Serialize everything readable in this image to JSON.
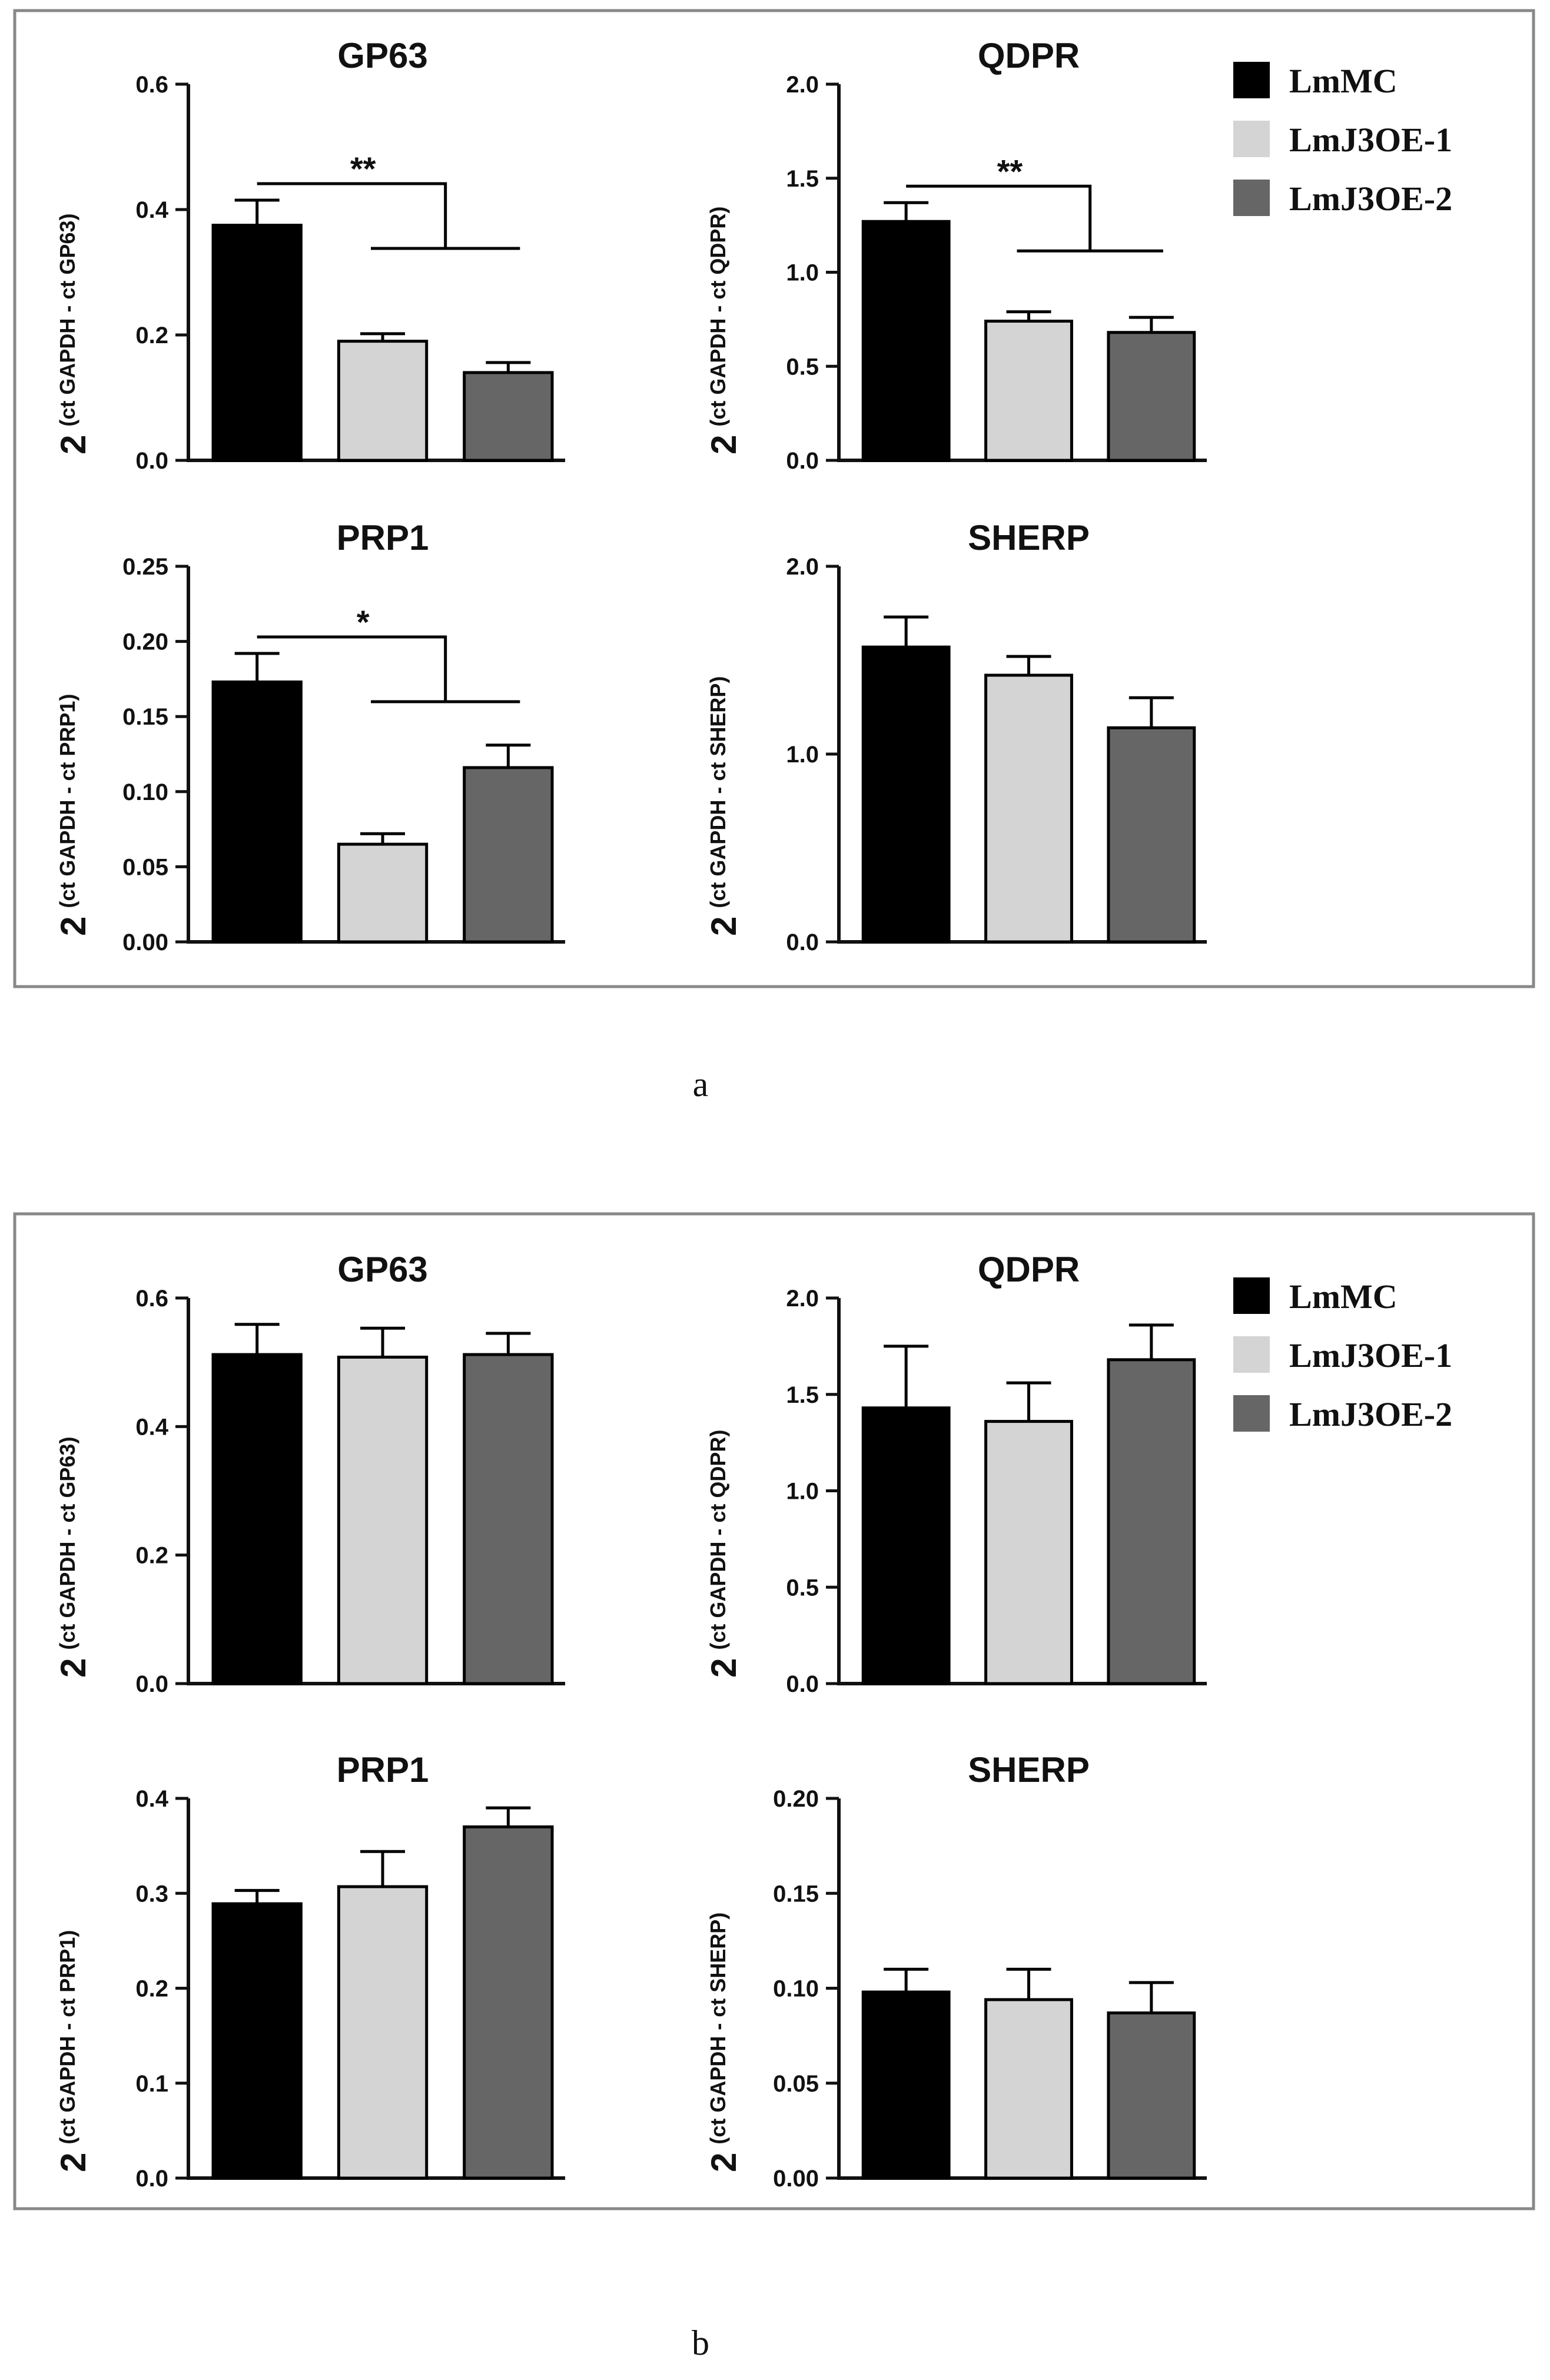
{
  "colors": {
    "frame": "#888888",
    "axis": "#111111",
    "series": [
      "#000000",
      "#d4d4d4",
      "#666666"
    ]
  },
  "legend": {
    "entries": [
      "LmMC",
      "LmJ3OE-1",
      "LmJ3OE-2"
    ]
  },
  "captions": [
    "a",
    "b"
  ],
  "chart_data": [
    {
      "panel": "a",
      "type": "bar",
      "title": "GP63",
      "ylabel_main": "2",
      "ylabel_sup": "(ct GAPDH - ct GP63)",
      "categories": [
        "LmMC",
        "LmJ3OE-1",
        "LmJ3OE-2"
      ],
      "values": [
        0.375,
        0.19,
        0.14
      ],
      "errors": [
        0.04,
        0.012,
        0.016
      ],
      "ylim": [
        0,
        0.6
      ],
      "yticks": [
        "0.0",
        "0.2",
        "0.4",
        "0.6"
      ],
      "significance": "**"
    },
    {
      "panel": "a",
      "type": "bar",
      "title": "QDPR",
      "ylabel_main": "2",
      "ylabel_sup": "(ct GAPDH - ct QDPR)",
      "categories": [
        "LmMC",
        "LmJ3OE-1",
        "LmJ3OE-2"
      ],
      "values": [
        1.27,
        0.74,
        0.68
      ],
      "errors": [
        0.1,
        0.05,
        0.08
      ],
      "ylim": [
        0,
        2.0
      ],
      "yticks": [
        "0.0",
        "0.5",
        "1.0",
        "1.5",
        "2.0"
      ],
      "significance": "**"
    },
    {
      "panel": "a",
      "type": "bar",
      "title": "PRP1",
      "ylabel_main": "2",
      "ylabel_sup": "(ct GAPDH - ct PRP1)",
      "categories": [
        "LmMC",
        "LmJ3OE-1",
        "LmJ3OE-2"
      ],
      "values": [
        0.173,
        0.065,
        0.116
      ],
      "errors": [
        0.019,
        0.007,
        0.015
      ],
      "ylim": [
        0,
        0.25
      ],
      "yticks": [
        "0.00",
        "0.05",
        "0.10",
        "0.15",
        "0.20",
        "0.25"
      ],
      "significance": "*"
    },
    {
      "panel": "a",
      "type": "bar",
      "title": "SHERP",
      "ylabel_main": "2",
      "ylabel_sup": "(ct GAPDH - ct SHERP)",
      "categories": [
        "LmMC",
        "LmJ3OE-1",
        "LmJ3OE-2"
      ],
      "values": [
        1.57,
        1.42,
        1.14
      ],
      "errors": [
        0.16,
        0.1,
        0.16
      ],
      "ylim": [
        0,
        2.0
      ],
      "yticks": [
        "0.0",
        "1.0",
        "2.0"
      ],
      "significance": ""
    },
    {
      "panel": "b",
      "type": "bar",
      "title": "GP63",
      "ylabel_main": "2",
      "ylabel_sup": "(ct GAPDH - ct GP63)",
      "categories": [
        "LmMC",
        "LmJ3OE-1",
        "LmJ3OE-2"
      ],
      "values": [
        0.512,
        0.508,
        0.512
      ],
      "errors": [
        0.047,
        0.045,
        0.033
      ],
      "ylim": [
        0,
        0.6
      ],
      "yticks": [
        "0.0",
        "0.2",
        "0.4",
        "0.6"
      ],
      "significance": ""
    },
    {
      "panel": "b",
      "type": "bar",
      "title": "QDPR",
      "ylabel_main": "2",
      "ylabel_sup": "(ct GAPDH - ct QDPR)",
      "categories": [
        "LmMC",
        "LmJ3OE-1",
        "LmJ3OE-2"
      ],
      "values": [
        1.43,
        1.36,
        1.68
      ],
      "errors": [
        0.32,
        0.2,
        0.18
      ],
      "ylim": [
        0,
        2.0
      ],
      "yticks": [
        "0.0",
        "0.5",
        "1.0",
        "1.5",
        "2.0"
      ],
      "significance": ""
    },
    {
      "panel": "b",
      "type": "bar",
      "title": "PRP1",
      "ylabel_main": "2",
      "ylabel_sup": "(ct GAPDH - ct PRP1)",
      "categories": [
        "LmMC",
        "LmJ3OE-1",
        "LmJ3OE-2"
      ],
      "values": [
        0.289,
        0.307,
        0.37
      ],
      "errors": [
        0.014,
        0.037,
        0.02
      ],
      "ylim": [
        0,
        0.4
      ],
      "yticks": [
        "0.0",
        "0.1",
        "0.2",
        "0.3",
        "0.4"
      ],
      "significance": ""
    },
    {
      "panel": "b",
      "type": "bar",
      "title": "SHERP",
      "ylabel_main": "2",
      "ylabel_sup": "(ct GAPDH - ct SHERP)",
      "categories": [
        "LmMC",
        "LmJ3OE-1",
        "LmJ3OE-2"
      ],
      "values": [
        0.098,
        0.094,
        0.087
      ],
      "errors": [
        0.012,
        0.016,
        0.016
      ],
      "ylim": [
        0,
        0.2
      ],
      "yticks": [
        "0.00",
        "0.05",
        "0.10",
        "0.15",
        "0.20"
      ],
      "significance": ""
    }
  ]
}
